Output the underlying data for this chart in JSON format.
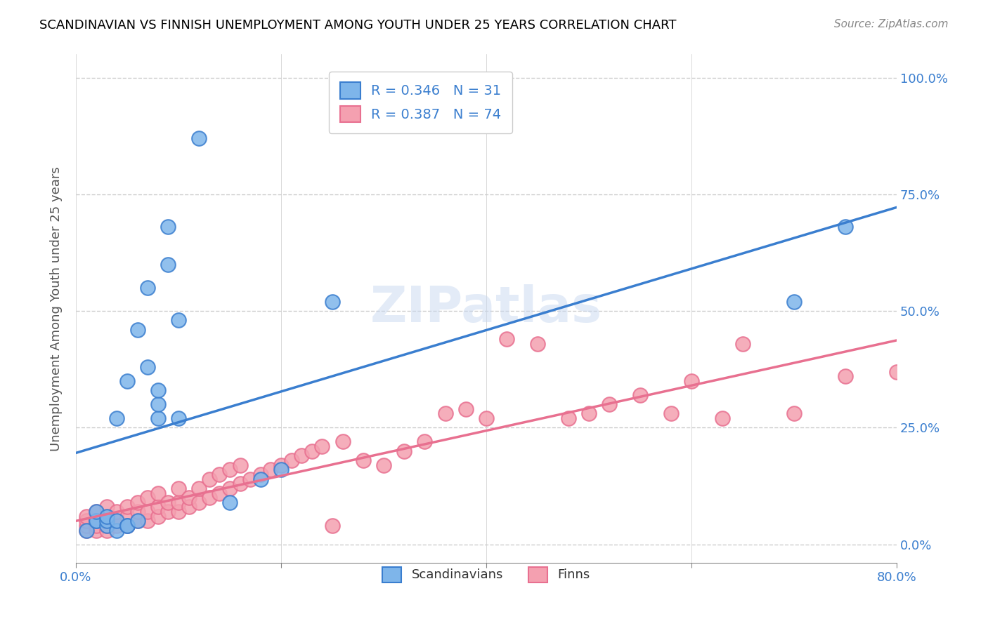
{
  "title": "SCANDINAVIAN VS FINNISH UNEMPLOYMENT AMONG YOUTH UNDER 25 YEARS CORRELATION CHART",
  "source": "Source: ZipAtlas.com",
  "xlabel": "",
  "ylabel": "Unemployment Among Youth under 25 years",
  "xlim": [
    0.0,
    0.8
  ],
  "ylim": [
    -0.04,
    1.05
  ],
  "xticks": [
    0.0,
    0.2,
    0.4,
    0.6,
    0.8
  ],
  "xtick_labels": [
    "0.0%",
    "",
    "",
    "",
    "80.0%"
  ],
  "ytick_labels": [
    "0.0%",
    "25.0%",
    "50.0%",
    "75.0%",
    "100.0%"
  ],
  "yticks": [
    0.0,
    0.25,
    0.5,
    0.75,
    1.0
  ],
  "scand_color": "#7eb5ea",
  "finn_color": "#f4a0b0",
  "scand_line_color": "#3a7ecf",
  "finn_line_color": "#e87090",
  "scand_R": 0.346,
  "scand_N": 31,
  "finn_R": 0.387,
  "finn_N": 74,
  "watermark": "ZIPatlas",
  "legend_blue_text": "R = 0.346   N = 31",
  "legend_pink_text": "R = 0.387   N = 74",
  "scand_x": [
    0.01,
    0.02,
    0.02,
    0.02,
    0.03,
    0.03,
    0.03,
    0.04,
    0.04,
    0.04,
    0.05,
    0.05,
    0.05,
    0.06,
    0.06,
    0.07,
    0.07,
    0.08,
    0.08,
    0.08,
    0.09,
    0.09,
    0.1,
    0.1,
    0.12,
    0.15,
    0.18,
    0.2,
    0.25,
    0.7,
    0.75
  ],
  "scand_y": [
    0.03,
    0.05,
    0.05,
    0.07,
    0.04,
    0.05,
    0.06,
    0.03,
    0.05,
    0.27,
    0.04,
    0.04,
    0.35,
    0.05,
    0.46,
    0.38,
    0.55,
    0.27,
    0.3,
    0.33,
    0.6,
    0.68,
    0.27,
    0.48,
    0.87,
    0.09,
    0.14,
    0.16,
    0.52,
    0.52,
    0.68
  ],
  "finn_x": [
    0.01,
    0.01,
    0.01,
    0.01,
    0.02,
    0.02,
    0.02,
    0.02,
    0.03,
    0.03,
    0.03,
    0.03,
    0.04,
    0.04,
    0.04,
    0.05,
    0.05,
    0.05,
    0.06,
    0.06,
    0.06,
    0.07,
    0.07,
    0.07,
    0.08,
    0.08,
    0.08,
    0.09,
    0.09,
    0.1,
    0.1,
    0.1,
    0.11,
    0.11,
    0.12,
    0.12,
    0.13,
    0.13,
    0.14,
    0.14,
    0.15,
    0.15,
    0.16,
    0.16,
    0.17,
    0.18,
    0.19,
    0.2,
    0.21,
    0.22,
    0.23,
    0.24,
    0.25,
    0.26,
    0.28,
    0.3,
    0.32,
    0.34,
    0.36,
    0.38,
    0.4,
    0.42,
    0.45,
    0.48,
    0.5,
    0.52,
    0.55,
    0.58,
    0.6,
    0.63,
    0.65,
    0.7,
    0.75,
    0.8
  ],
  "finn_y": [
    0.03,
    0.04,
    0.05,
    0.06,
    0.03,
    0.04,
    0.05,
    0.07,
    0.03,
    0.04,
    0.06,
    0.08,
    0.04,
    0.05,
    0.07,
    0.04,
    0.06,
    0.08,
    0.05,
    0.07,
    0.09,
    0.05,
    0.07,
    0.1,
    0.06,
    0.08,
    0.11,
    0.07,
    0.09,
    0.07,
    0.09,
    0.12,
    0.08,
    0.1,
    0.09,
    0.12,
    0.1,
    0.14,
    0.11,
    0.15,
    0.12,
    0.16,
    0.13,
    0.17,
    0.14,
    0.15,
    0.16,
    0.17,
    0.18,
    0.19,
    0.2,
    0.21,
    0.04,
    0.22,
    0.18,
    0.17,
    0.2,
    0.22,
    0.28,
    0.29,
    0.27,
    0.44,
    0.43,
    0.27,
    0.28,
    0.3,
    0.32,
    0.28,
    0.35,
    0.27,
    0.43,
    0.28,
    0.36,
    0.37
  ]
}
